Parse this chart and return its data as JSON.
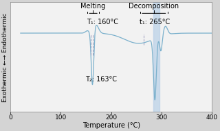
{
  "xlabel": "Temperature (°C)",
  "ylabel": "Exothermic ←→ Endothermic",
  "xlim": [
    0,
    400
  ],
  "ylim": [
    -2.2,
    1.0
  ],
  "bg_color": "#d4d4d4",
  "plot_bg_color": "#f2f2f2",
  "line_color": "#7ab0cc",
  "dashed_color": "#9999bb",
  "shade_color": "#b8d0e8",
  "melting_label": "Melting",
  "melting_T1": "T₁: 160°C",
  "melting_T2": "T₂: 163°C",
  "decomp_label": "Decomposition",
  "decomp_T1": "t₁: 265°C",
  "tick_fontsize": 6.5,
  "annot_fontsize": 7.0,
  "label_fontsize": 7.0
}
